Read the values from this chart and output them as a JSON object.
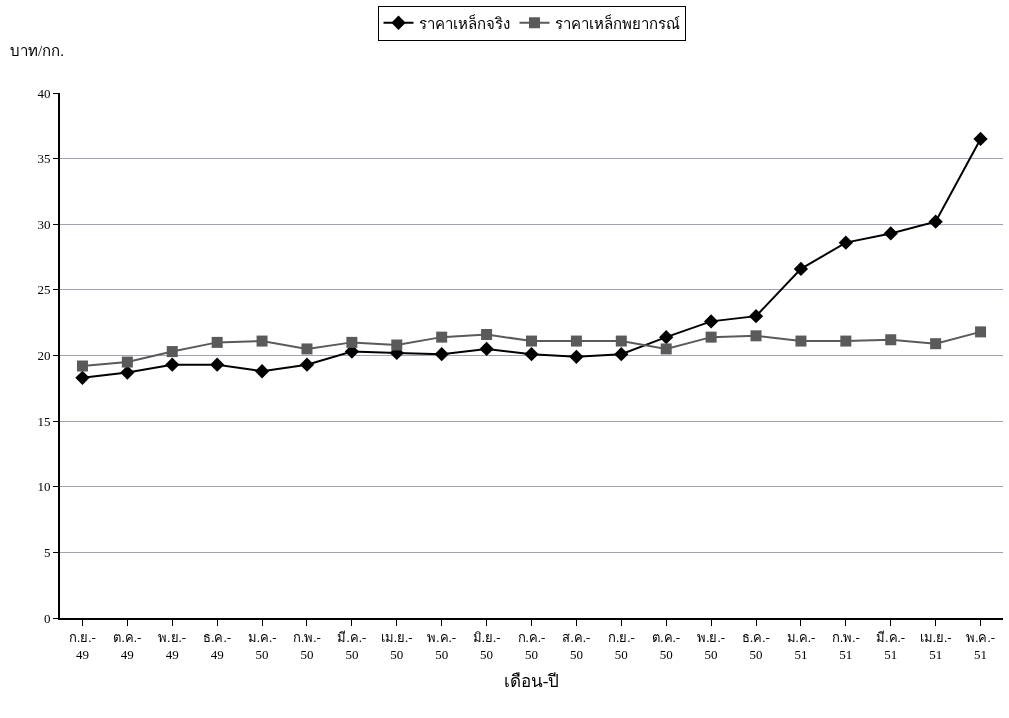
{
  "chart_data": {
    "type": "line",
    "ylabel": "บาท/กก.",
    "xlabel": "เดือน-ปี",
    "categories": [
      "ก.ย.-\n49",
      "ต.ค.-\n49",
      "พ.ย.-\n49",
      "ธ.ค.-\n49",
      "ม.ค.-\n50",
      "ก.พ.-\n50",
      "มี.ค.-\n50",
      "เม.ย.-\n50",
      "พ.ค.-\n50",
      "มิ.ย.-\n50",
      "ก.ค.-\n50",
      "ส.ค.-\n50",
      "ก.ย.-\n50",
      "ต.ค.-\n50",
      "พ.ย.-\n50",
      "ธ.ค.-\n50",
      "ม.ค.-\n51",
      "ก.พ.-\n51",
      "มี.ค.-\n51",
      "เม.ย.-\n51",
      "พ.ค.-\n51"
    ],
    "series": [
      {
        "name": "ราคาเหล็กจริง",
        "color": "#000000",
        "marker": "diamond",
        "values": [
          18.3,
          18.7,
          19.3,
          19.3,
          18.8,
          19.3,
          20.3,
          20.2,
          20.1,
          20.5,
          20.1,
          19.9,
          20.1,
          21.4,
          22.6,
          23.0,
          26.6,
          28.6,
          29.3,
          30.2,
          36.5
        ]
      },
      {
        "name": "ราคาเหล็กพยากรณ์",
        "color": "#5a5a5a",
        "marker": "square",
        "values": [
          19.2,
          19.5,
          20.3,
          21.0,
          21.1,
          20.5,
          21.0,
          20.8,
          21.4,
          21.6,
          21.1,
          21.1,
          21.1,
          20.5,
          21.4,
          21.5,
          21.1,
          21.1,
          21.2,
          20.9,
          21.8
        ]
      }
    ],
    "ylim": [
      0,
      40
    ],
    "yticks": [
      0,
      5,
      10,
      15,
      20,
      25,
      30,
      35,
      40
    ],
    "grid": "y",
    "legend": "top"
  }
}
